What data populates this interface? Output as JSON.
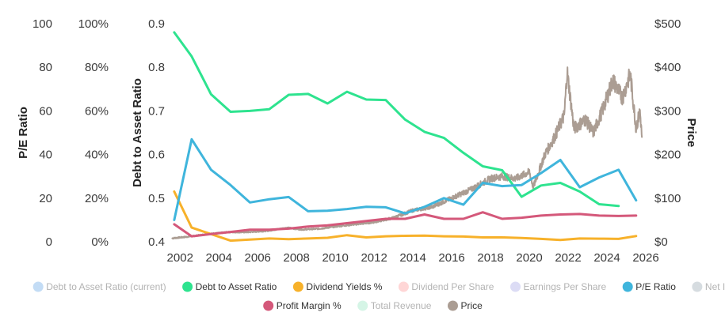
{
  "chart_data": {
    "type": "line",
    "axes": {
      "pe_ratio": {
        "title": "P/E Ratio",
        "ticks": [
          "0",
          "20",
          "40",
          "60",
          "80",
          "100"
        ],
        "range": [
          0,
          100
        ]
      },
      "percent": {
        "title": "",
        "ticks": [
          "0%",
          "20%",
          "40%",
          "60%",
          "80%",
          "100%"
        ],
        "range": [
          0,
          100
        ]
      },
      "debt_to_asset": {
        "title": "Debt to Asset Ratio",
        "ticks": [
          "0.4",
          "0.5",
          "0.6",
          "0.7",
          "0.8",
          "0.9"
        ],
        "range": [
          0.4,
          0.9
        ]
      },
      "price": {
        "title": "Price",
        "ticks": [
          "$0",
          "$100",
          "$200",
          "$300",
          "$400",
          "$500"
        ],
        "range": [
          0,
          500
        ]
      },
      "x": {
        "ticks": [
          "2002",
          "2004",
          "2006",
          "2008",
          "2010",
          "2012",
          "2014",
          "2016",
          "2018",
          "2020",
          "2022",
          "2024",
          "2026"
        ],
        "range": [
          2001.5,
          2026
        ]
      }
    },
    "grid": false,
    "legend_position": "bottom",
    "legend": [
      {
        "name": "Debt to Asset Ratio (current)",
        "color": "#c3dcf5",
        "active": false
      },
      {
        "name": "Debt to Asset Ratio",
        "color": "#2ee38f",
        "active": true
      },
      {
        "name": "Dividend Yields %",
        "color": "#f7b12a",
        "active": true
      },
      {
        "name": "Dividend Per Share",
        "color": "#ffd6d6",
        "active": false
      },
      {
        "name": "Earnings Per Share",
        "color": "#dcdcf5",
        "active": false
      },
      {
        "name": "P/E Ratio",
        "color": "#3fb5dc",
        "active": true
      },
      {
        "name": "Net Income",
        "color": "#d6dce0",
        "active": false
      },
      {
        "name": "Profit Margin %",
        "color": "#d4587a",
        "active": true
      },
      {
        "name": "Total Revenue",
        "color": "#d5f5e6",
        "active": false
      },
      {
        "name": "Price",
        "color": "#ab9d93",
        "active": true
      }
    ],
    "series": [
      {
        "name": "Debt to Asset Ratio",
        "axis": "debt_to_asset",
        "color": "#2ee38f",
        "x": [
          2001.7,
          2002.6,
          2003.6,
          2004.6,
          2005.6,
          2006.6,
          2007.6,
          2008.6,
          2009.6,
          2010.6,
          2011.6,
          2012.6,
          2013.6,
          2014.6,
          2015.6,
          2016.6,
          2017.6,
          2018.6,
          2019.6,
          2020.6,
          2021.6,
          2022.6,
          2023.6,
          2024.6
        ],
        "y": [
          0.88,
          0.825,
          0.738,
          0.698,
          0.7,
          0.704,
          0.737,
          0.739,
          0.717,
          0.744,
          0.726,
          0.725,
          0.68,
          0.652,
          0.638,
          0.604,
          0.573,
          0.564,
          0.503,
          0.529,
          0.535,
          0.515,
          0.486,
          0.482
        ]
      },
      {
        "name": "Dividend Yields %",
        "axis": "percent",
        "color": "#f7b12a",
        "x": [
          2001.7,
          2002.6,
          2003.6,
          2004.6,
          2005.6,
          2006.6,
          2007.6,
          2008.6,
          2009.6,
          2010.6,
          2011.6,
          2012.6,
          2013.6,
          2014.6,
          2015.6,
          2016.6,
          2017.6,
          2018.6,
          2019.6,
          2020.6,
          2021.6,
          2022.6,
          2023.6,
          2024.6,
          2025.5
        ],
        "y": [
          23.0,
          6.5,
          3.5,
          0.5,
          1.0,
          1.5,
          1.2,
          1.5,
          1.8,
          3.0,
          2.0,
          2.5,
          2.7,
          2.8,
          2.5,
          2.4,
          2.0,
          2.0,
          1.7,
          1.3,
          0.8,
          1.5,
          1.4,
          1.3,
          2.6
        ]
      },
      {
        "name": "P/E Ratio",
        "axis": "pe_ratio",
        "color": "#3fb5dc",
        "x": [
          2001.7,
          2002.6,
          2003.6,
          2004.6,
          2005.6,
          2006.6,
          2007.6,
          2008.6,
          2009.6,
          2010.6,
          2011.6,
          2012.6,
          2013.6,
          2014.6,
          2015.6,
          2016.6,
          2017.6,
          2018.6,
          2019.6,
          2020.6,
          2021.6,
          2022.6,
          2023.6,
          2024.6,
          2025.5
        ],
        "y": [
          10.0,
          47.0,
          33.0,
          26.0,
          18.0,
          19.5,
          20.5,
          14.0,
          14.2,
          15.0,
          16.0,
          15.8,
          13.0,
          16.0,
          20.0,
          17.0,
          27.0,
          25.5,
          26.0,
          31.5,
          37.5,
          25.0,
          29.5,
          33.0,
          19.0
        ]
      },
      {
        "name": "Profit Margin %",
        "axis": "percent",
        "color": "#d4587a",
        "x": [
          2001.7,
          2002.6,
          2003.6,
          2004.6,
          2005.6,
          2006.6,
          2007.6,
          2008.6,
          2009.6,
          2010.6,
          2011.6,
          2012.6,
          2013.6,
          2014.6,
          2015.6,
          2016.6,
          2017.6,
          2018.6,
          2019.6,
          2020.6,
          2021.6,
          2022.6,
          2023.6,
          2024.6,
          2025.5
        ],
        "y": [
          8.0,
          2.5,
          3.5,
          4.5,
          5.5,
          5.5,
          6.0,
          7.0,
          7.5,
          8.5,
          9.5,
          10.5,
          10.5,
          12.5,
          10.5,
          10.5,
          13.5,
          10.5,
          11.0,
          12.0,
          12.5,
          12.7,
          12.0,
          11.8,
          12.0
        ]
      },
      {
        "name": "Price",
        "axis": "price",
        "color": "#ab9d93",
        "x": [
          2001.6,
          2002.5,
          2003.5,
          2004.5,
          2005.5,
          2006.5,
          2007.5,
          2008.3,
          2009.2,
          2010.0,
          2011.0,
          2012.0,
          2013.0,
          2014.0,
          2015.0,
          2016.0,
          2017.0,
          2018.0,
          2018.6,
          2019.3,
          2020.0,
          2020.2,
          2020.8,
          2021.3,
          2021.8,
          2021.95,
          2022.3,
          2022.9,
          2023.3,
          2023.8,
          2024.3,
          2024.8,
          2025.2,
          2025.5,
          2025.7,
          2025.8
        ],
        "y": [
          8,
          12,
          18,
          22,
          22,
          25,
          32,
          28,
          30,
          35,
          40,
          45,
          55,
          72,
          80,
          100,
          120,
          145,
          150,
          145,
          160,
          125,
          200,
          240,
          290,
          390,
          260,
          280,
          250,
          305,
          370,
          330,
          385,
          260,
          300,
          240
        ]
      }
    ]
  }
}
